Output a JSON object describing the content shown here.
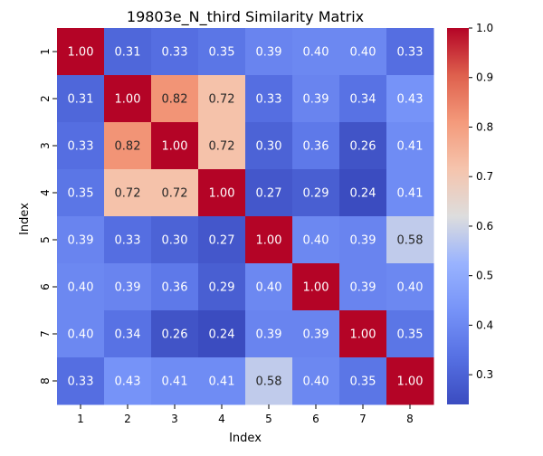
{
  "chart_data": {
    "type": "heatmap",
    "title": "19803e_N_third Similarity Matrix",
    "xlabel": "Index",
    "ylabel": "Index",
    "x_categories": [
      "1",
      "2",
      "3",
      "4",
      "5",
      "6",
      "7",
      "8"
    ],
    "y_categories": [
      "1",
      "2",
      "3",
      "4",
      "5",
      "6",
      "7",
      "8"
    ],
    "values": [
      [
        1.0,
        0.31,
        0.33,
        0.35,
        0.39,
        0.4,
        0.4,
        0.33
      ],
      [
        0.31,
        1.0,
        0.82,
        0.72,
        0.33,
        0.39,
        0.34,
        0.43
      ],
      [
        0.33,
        0.82,
        1.0,
        0.72,
        0.3,
        0.36,
        0.26,
        0.41
      ],
      [
        0.35,
        0.72,
        0.72,
        1.0,
        0.27,
        0.29,
        0.24,
        0.41
      ],
      [
        0.39,
        0.33,
        0.3,
        0.27,
        1.0,
        0.4,
        0.39,
        0.58
      ],
      [
        0.4,
        0.39,
        0.36,
        0.29,
        0.4,
        1.0,
        0.39,
        0.4
      ],
      [
        0.4,
        0.34,
        0.26,
        0.24,
        0.39,
        0.39,
        1.0,
        0.35
      ],
      [
        0.33,
        0.43,
        0.41,
        0.41,
        0.58,
        0.4,
        0.35,
        1.0
      ]
    ],
    "value_format": "0.00",
    "colormap": "coolwarm",
    "color_range": [
      0.24,
      1.0
    ],
    "colorbar_ticks": [
      "0.3",
      "0.4",
      "0.5",
      "0.6",
      "0.7",
      "0.8",
      "0.9",
      "1.0"
    ],
    "grid": false,
    "legend": "colorbar-right"
  }
}
